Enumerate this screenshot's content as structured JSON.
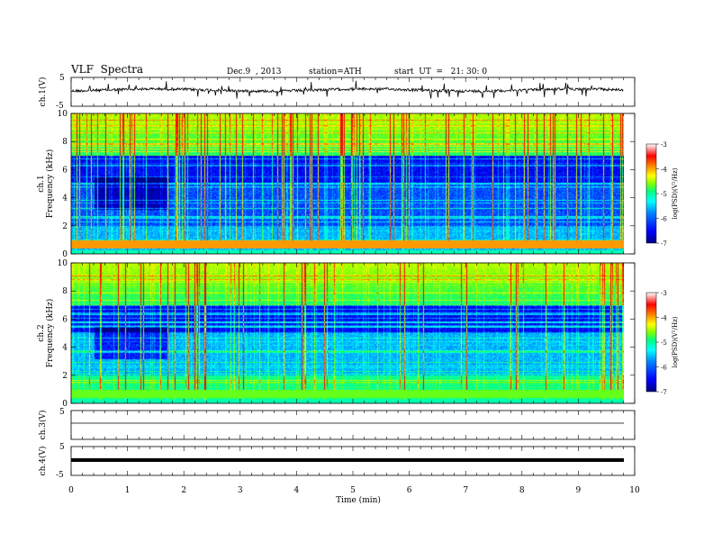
{
  "header": {
    "title": "VLF  Spectra",
    "date": "Dec.9  , 2013",
    "station": "station=ATH",
    "start": "start  UT  =   21: 30: 0"
  },
  "chart_data": [
    {
      "type": "line",
      "name": "ch1-waveform",
      "ylabel": "ch.1(V)",
      "ylim": [
        -5,
        5
      ],
      "yticks": [
        "5",
        "-5"
      ],
      "xlim": [
        0,
        10
      ],
      "data_extent": [
        0,
        9.8
      ],
      "baseline": 0
    },
    {
      "type": "heatmap",
      "name": "ch1-spectrogram",
      "ylabel": [
        "ch.1",
        "Frequency  (kHz)"
      ],
      "ylim": [
        0,
        10
      ],
      "yticks": [
        "0",
        "2",
        "4",
        "6",
        "8",
        "10"
      ],
      "xlim": [
        0,
        10
      ],
      "data_extent": [
        0,
        9.8
      ],
      "colorbar": {
        "label": "log(PSD)(V²/Hz)",
        "range": [
          -7,
          -3
        ],
        "ticks": [
          "-3",
          "-4",
          "-5",
          "-6",
          "-7"
        ]
      }
    },
    {
      "type": "heatmap",
      "name": "ch2-spectrogram",
      "ylabel": [
        "ch.2",
        "Frequency  (kHz)"
      ],
      "ylim": [
        0,
        10
      ],
      "yticks": [
        "0",
        "2",
        "4",
        "6",
        "8",
        "10"
      ],
      "xlim": [
        0,
        10
      ],
      "data_extent": [
        0,
        9.8
      ],
      "colorbar": {
        "label": "log(PSD)(V²/Hz)",
        "range": [
          -7,
          -3
        ],
        "ticks": [
          "-3",
          "-4",
          "-5",
          "-6",
          "-7"
        ]
      }
    },
    {
      "type": "line",
      "name": "ch3-waveform",
      "ylabel": "ch.3(V)",
      "ylim": [
        -5,
        5
      ],
      "yticks": [
        "5"
      ],
      "xlim": [
        0,
        10
      ],
      "data_extent": [
        0,
        9.8
      ],
      "baseline": 0
    },
    {
      "type": "line",
      "name": "ch4-waveform",
      "ylabel": "ch.4(V)",
      "ylim": [
        -5,
        5
      ],
      "yticks": [
        "5",
        "-5"
      ],
      "xlim": [
        0,
        10
      ],
      "data_extent": [
        0,
        9.8
      ],
      "baseline": 0
    }
  ],
  "xaxis": {
    "label": "Time  (min)",
    "ticks": [
      "0",
      "1",
      "2",
      "3",
      "4",
      "5",
      "6",
      "7",
      "8",
      "9",
      "10"
    ]
  },
  "colors": {
    "colormap": [
      "#000080",
      "#0000ff",
      "#0080ff",
      "#00ffff",
      "#00ff80",
      "#80ff00",
      "#ffff00",
      "#ff8000",
      "#ff0000",
      "#ffffff"
    ]
  }
}
